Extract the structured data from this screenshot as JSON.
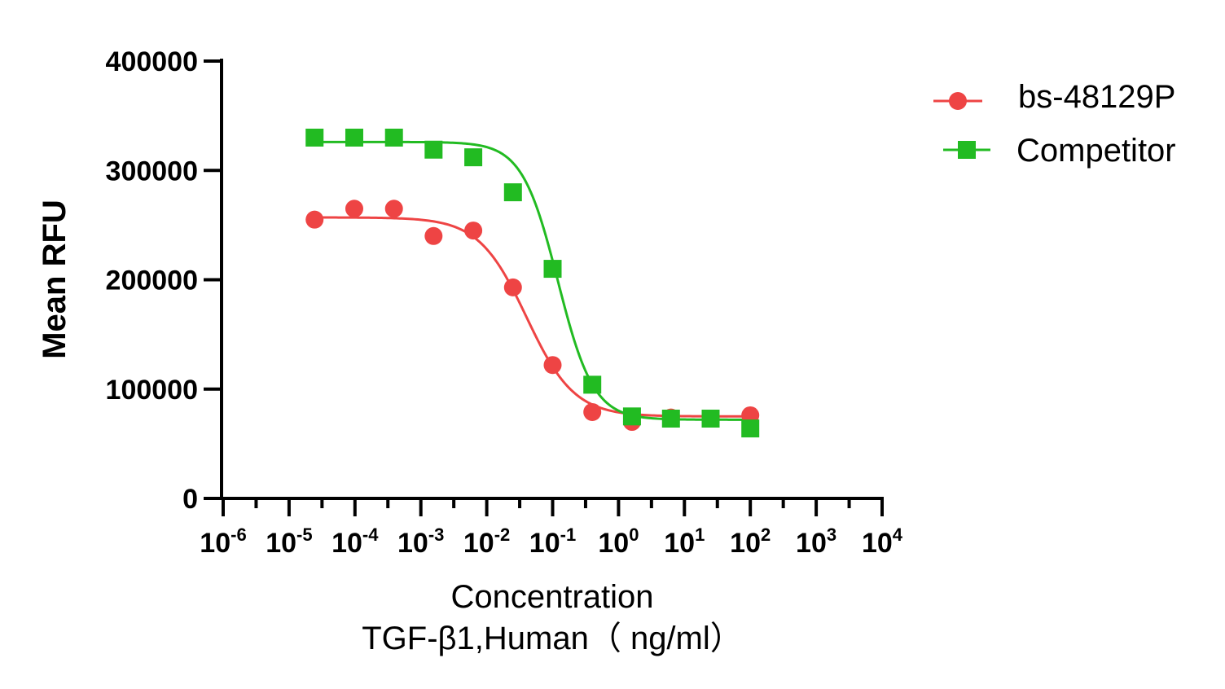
{
  "chart_data": {
    "type": "scatter",
    "xlabel": "Concentration",
    "xlabel_line2": "TGF-β1,Human（ ng/ml）",
    "ylabel": "Mean RFU",
    "x_scale": "log",
    "xlim": [
      1e-06,
      10000.0
    ],
    "ylim": [
      0,
      400000
    ],
    "y_ticks": [
      "0",
      "100000",
      "200000",
      "300000",
      "400000"
    ],
    "y_tick_values": [
      0,
      100000,
      200000,
      300000,
      400000
    ],
    "x_ticks": [
      {
        "base": "10",
        "exp": "-6",
        "value": 1e-06
      },
      {
        "base": "10",
        "exp": "-5",
        "value": 1e-05
      },
      {
        "base": "10",
        "exp": "-4",
        "value": 0.0001
      },
      {
        "base": "10",
        "exp": "-3",
        "value": 0.001
      },
      {
        "base": "10",
        "exp": "-2",
        "value": 0.01
      },
      {
        "base": "10",
        "exp": "-1",
        "value": 0.1
      },
      {
        "base": "10",
        "exp": "0",
        "value": 1
      },
      {
        "base": "10",
        "exp": "1",
        "value": 10
      },
      {
        "base": "10",
        "exp": "2",
        "value": 100
      },
      {
        "base": "10",
        "exp": "3",
        "value": 1000
      },
      {
        "base": "10",
        "exp": "4",
        "value": 10000
      }
    ],
    "legend_position": "top-right",
    "series": [
      {
        "name": "bs-48129P",
        "color": "#ee4444",
        "marker": "circle",
        "x": [
          2.44e-05,
          9.77e-05,
          0.000391,
          0.00156,
          0.00625,
          0.025,
          0.1,
          0.4,
          1.6,
          6.25,
          25,
          100
        ],
        "y": [
          255000,
          265000,
          265000,
          240000,
          245000,
          193000,
          122000,
          79000,
          70000,
          74000,
          73000,
          76000
        ],
        "fit": {
          "bottom": 75000,
          "top": 257000,
          "ic50": 0.04,
          "hill": 1.2
        }
      },
      {
        "name": "Competitor",
        "color": "#22bb22",
        "marker": "square",
        "x": [
          2.44e-05,
          9.77e-05,
          0.000391,
          0.00156,
          0.00625,
          0.025,
          0.1,
          0.4,
          1.6,
          6.25,
          25,
          100
        ],
        "y": [
          330000,
          330000,
          330000,
          319000,
          312000,
          280000,
          210000,
          104000,
          75000,
          73000,
          73000,
          64000
        ],
        "fit": {
          "bottom": 72000,
          "top": 326000,
          "ic50": 0.12,
          "hill": 1.6
        }
      }
    ]
  }
}
